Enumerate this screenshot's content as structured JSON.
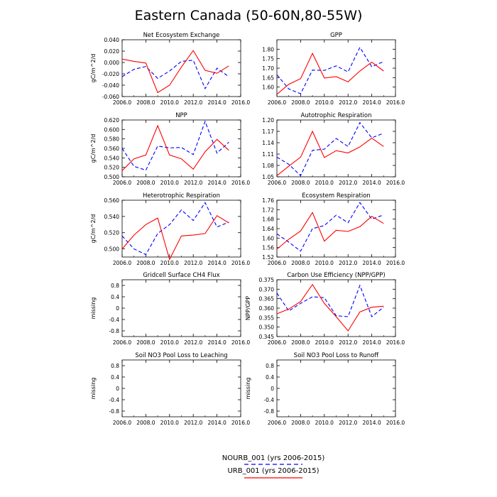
{
  "title": "Eastern Canada (50-60N,80-55W)",
  "colors": {
    "nourb": "#0000ff",
    "urb": "#ff0000",
    "axis": "#000000"
  },
  "legend": [
    {
      "label": "NOURB_001 (yrs 2006-2015)",
      "style": "dashed",
      "color": "#0000ff"
    },
    {
      "label": "URB_001 (yrs 2006-2015)",
      "style": "solid",
      "color": "#ff0000"
    }
  ],
  "chart_data": [
    {
      "type": "line",
      "title": "Net Ecosystem Exchange",
      "ylabel": "gC/m^2/d",
      "xlim": [
        2006,
        2016
      ],
      "ylim": [
        -0.06,
        0.04
      ],
      "xticks": [
        "2006.0",
        "2008.0",
        "2010.0",
        "2012.0",
        "2014.0",
        "2016.0"
      ],
      "yticks": [
        "-0.060",
        "-0.040",
        "-0.020",
        "0.000",
        "0.020",
        "0.040"
      ],
      "x": [
        2006,
        2007,
        2008,
        2009,
        2010,
        2011,
        2012,
        2013,
        2014,
        2015
      ],
      "series": [
        {
          "name": "NOURB_001",
          "values": [
            -0.025,
            -0.012,
            -0.007,
            -0.028,
            -0.015,
            0.002,
            0.004,
            -0.046,
            -0.01,
            -0.025
          ]
        },
        {
          "name": "URB_001",
          "values": [
            0.006,
            0.002,
            -0.001,
            -0.053,
            -0.04,
            -0.008,
            0.021,
            -0.014,
            -0.019,
            -0.006
          ]
        }
      ]
    },
    {
      "type": "line",
      "title": "GPP",
      "ylabel": "",
      "xlim": [
        2006,
        2016
      ],
      "ylim": [
        1.55,
        1.85
      ],
      "xticks": [
        "2006.0",
        "2008.0",
        "2010.0",
        "2012.0",
        "2014.0",
        "2016.0"
      ],
      "yticks": [
        "1.60",
        "1.65",
        "1.70",
        "1.75",
        "1.80"
      ],
      "x": [
        2006,
        2007,
        2008,
        2009,
        2010,
        2011,
        2012,
        2013,
        2014,
        2015
      ],
      "series": [
        {
          "name": "NOURB_001",
          "values": [
            1.665,
            1.59,
            1.565,
            1.69,
            1.688,
            1.712,
            1.68,
            1.81,
            1.708,
            1.735
          ]
        },
        {
          "name": "URB_001",
          "values": [
            1.562,
            1.615,
            1.645,
            1.778,
            1.648,
            1.655,
            1.628,
            1.685,
            1.732,
            1.685
          ]
        }
      ]
    },
    {
      "type": "line",
      "title": "NPP",
      "ylabel": "gC/m^2/d",
      "xlim": [
        2006,
        2016
      ],
      "ylim": [
        0.5,
        0.62
      ],
      "xticks": [
        "2006.0",
        "2008.0",
        "2010.0",
        "2012.0",
        "2014.0",
        "2016.0"
      ],
      "yticks": [
        "0.500",
        "0.520",
        "0.540",
        "0.560",
        "0.580",
        "0.600",
        "0.620"
      ],
      "x": [
        2006,
        2007,
        2008,
        2009,
        2010,
        2011,
        2012,
        2013,
        2014,
        2015
      ],
      "series": [
        {
          "name": "NOURB_001",
          "values": [
            0.56,
            0.522,
            0.514,
            0.565,
            0.561,
            0.562,
            0.547,
            0.617,
            0.55,
            0.573
          ]
        },
        {
          "name": "URB_001",
          "values": [
            0.513,
            0.538,
            0.546,
            0.608,
            0.546,
            0.538,
            0.516,
            0.553,
            0.579,
            0.556
          ]
        }
      ]
    },
    {
      "type": "line",
      "title": "Autotrophic Respiration",
      "ylabel": "",
      "xlim": [
        2006,
        2016
      ],
      "ylim": [
        1.05,
        1.2
      ],
      "xticks": [
        "2006.0",
        "2008.0",
        "2010.0",
        "2012.0",
        "2014.0",
        "2016.0"
      ],
      "yticks": [
        "1.05",
        "1.08",
        "1.11",
        "1.14",
        "1.17",
        "1.20"
      ],
      "x": [
        2006,
        2007,
        2008,
        2009,
        2010,
        2011,
        2012,
        2013,
        2014,
        2015
      ],
      "series": [
        {
          "name": "NOURB_001",
          "values": [
            1.102,
            1.083,
            1.053,
            1.12,
            1.123,
            1.151,
            1.13,
            1.193,
            1.153,
            1.165
          ]
        },
        {
          "name": "URB_001",
          "values": [
            1.053,
            1.078,
            1.102,
            1.17,
            1.101,
            1.119,
            1.113,
            1.129,
            1.152,
            1.13
          ]
        }
      ]
    },
    {
      "type": "line",
      "title": "Heterotrophic Respiration",
      "ylabel": "gC/m^2/d",
      "xlim": [
        2006,
        2016
      ],
      "ylim": [
        0.49,
        0.56
      ],
      "xticks": [
        "2006.0",
        "2008.0",
        "2010.0",
        "2012.0",
        "2014.0",
        "2016.0"
      ],
      "yticks": [
        "0.500",
        "0.520",
        "0.540",
        "0.560"
      ],
      "x": [
        2006,
        2007,
        2008,
        2009,
        2010,
        2011,
        2012,
        2013,
        2014,
        2015
      ],
      "series": [
        {
          "name": "NOURB_001",
          "values": [
            0.516,
            0.5,
            0.493,
            0.519,
            0.53,
            0.548,
            0.535,
            0.557,
            0.527,
            0.533
          ]
        },
        {
          "name": "URB_001",
          "values": [
            0.5,
            0.517,
            0.53,
            0.538,
            0.487,
            0.516,
            0.517,
            0.519,
            0.541,
            0.532
          ]
        }
      ]
    },
    {
      "type": "line",
      "title": "Ecosystem Respiration",
      "ylabel": "",
      "xlim": [
        2006,
        2016
      ],
      "ylim": [
        1.52,
        1.76
      ],
      "xticks": [
        "2006.0",
        "2008.0",
        "2010.0",
        "2012.0",
        "2014.0",
        "2016.0"
      ],
      "yticks": [
        "1.52",
        "1.56",
        "1.60",
        "1.64",
        "1.68",
        "1.72",
        "1.76"
      ],
      "x": [
        2006,
        2007,
        2008,
        2009,
        2010,
        2011,
        2012,
        2013,
        2014,
        2015
      ],
      "series": [
        {
          "name": "NOURB_001",
          "values": [
            1.618,
            1.583,
            1.545,
            1.64,
            1.653,
            1.697,
            1.665,
            1.75,
            1.68,
            1.698
          ]
        },
        {
          "name": "URB_001",
          "values": [
            1.553,
            1.595,
            1.63,
            1.708,
            1.587,
            1.633,
            1.628,
            1.648,
            1.692,
            1.662
          ]
        }
      ]
    },
    {
      "type": "line",
      "title": "Gridcell Surface CH4 Flux",
      "ylabel": "missing",
      "xlim": [
        2006,
        2016
      ],
      "ylim": [
        -1,
        1
      ],
      "xticks": [
        "2006.0",
        "2008.0",
        "2010.0",
        "2012.0",
        "2014.0",
        "2016.0"
      ],
      "yticks": [
        "-0.8",
        "-0.4",
        "0",
        "0.4",
        "0.8"
      ],
      "x": [],
      "series": []
    },
    {
      "type": "line",
      "title": "Carbon Use Efficiency (NPP/GPP)",
      "ylabel": "NPP/GPP",
      "xlim": [
        2006,
        2016
      ],
      "ylim": [
        0.345,
        0.375
      ],
      "xticks": [
        "2006.0",
        "2008.0",
        "2010.0",
        "2012.0",
        "2014.0",
        "2016.0"
      ],
      "yticks": [
        "0.345",
        "0.350",
        "0.355",
        "0.360",
        "0.365",
        "0.370",
        "0.375"
      ],
      "x": [
        2006,
        2007,
        2008,
        2009,
        2010,
        2011,
        2012,
        2013,
        2014,
        2015
      ],
      "series": [
        {
          "name": "NOURB_001",
          "values": [
            0.368,
            0.3585,
            0.3625,
            0.366,
            0.3655,
            0.356,
            0.3555,
            0.372,
            0.3555,
            0.3605
          ]
        },
        {
          "name": "URB_001",
          "values": [
            0.357,
            0.3595,
            0.3635,
            0.3725,
            0.3625,
            0.3555,
            0.348,
            0.358,
            0.3605,
            0.361
          ]
        }
      ]
    },
    {
      "type": "line",
      "title": "Soil NO3 Pool Loss to Leaching",
      "ylabel": "missing",
      "xlim": [
        2006,
        2016
      ],
      "ylim": [
        -1,
        1
      ],
      "xticks": [
        "2006.0",
        "2008.0",
        "2010.0",
        "2012.0",
        "2014.0",
        "2016.0"
      ],
      "yticks": [
        "-0.8",
        "-0.4",
        "0",
        "0.4",
        "0.8"
      ],
      "x": [],
      "series": []
    },
    {
      "type": "line",
      "title": "Soil NO3 Pool Loss to Runoff",
      "ylabel": "missing",
      "xlim": [
        2006,
        2016
      ],
      "ylim": [
        -1,
        1
      ],
      "xticks": [
        "2006.0",
        "2008.0",
        "2010.0",
        "2012.0",
        "2014.0",
        "2016.0"
      ],
      "yticks": [
        "-0.8",
        "-0.4",
        "0",
        "0.4",
        "0.8"
      ],
      "x": [],
      "series": []
    }
  ]
}
